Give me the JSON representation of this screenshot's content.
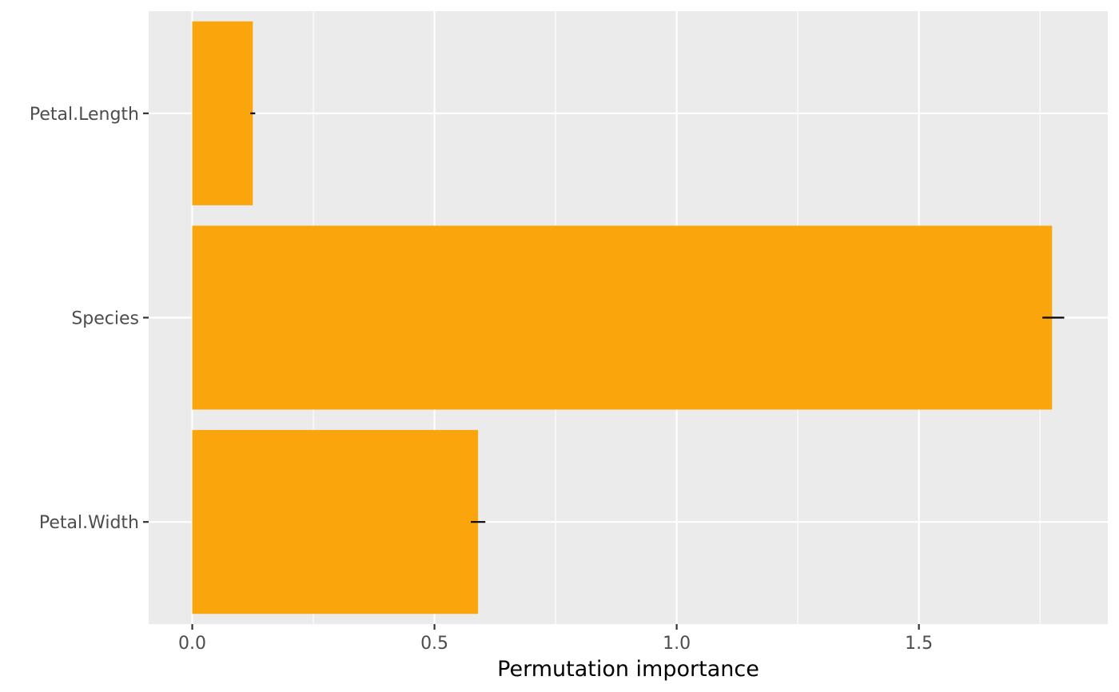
{
  "chart_data": {
    "type": "bar",
    "orientation": "horizontal",
    "categories": [
      "Petal.Length",
      "Species",
      "Petal.Width"
    ],
    "values": [
      0.125,
      1.775,
      0.59
    ],
    "error_bars": [
      {
        "category": "Petal.Length",
        "low": 0.12,
        "high": 0.13
      },
      {
        "category": "Species",
        "low": 1.755,
        "high": 1.8
      },
      {
        "category": "Petal.Width",
        "low": 0.575,
        "high": 0.605
      }
    ],
    "xlabel": "Permutation importance",
    "ylabel": "",
    "title": "",
    "xlim": [
      -0.09,
      1.89
    ],
    "xticks": [
      0.0,
      0.5,
      1.0,
      1.5
    ],
    "xtick_labels": [
      "0.0",
      "0.5",
      "1.0",
      "1.5"
    ],
    "grid": true,
    "legend": "none",
    "colors": {
      "bar": "#FAA50C",
      "panel": "#EBEBEB",
      "grid": "#FFFFFF",
      "error_bar": "#000000",
      "tick_text": "#4D4D4D",
      "axis_title": "#000000"
    }
  }
}
